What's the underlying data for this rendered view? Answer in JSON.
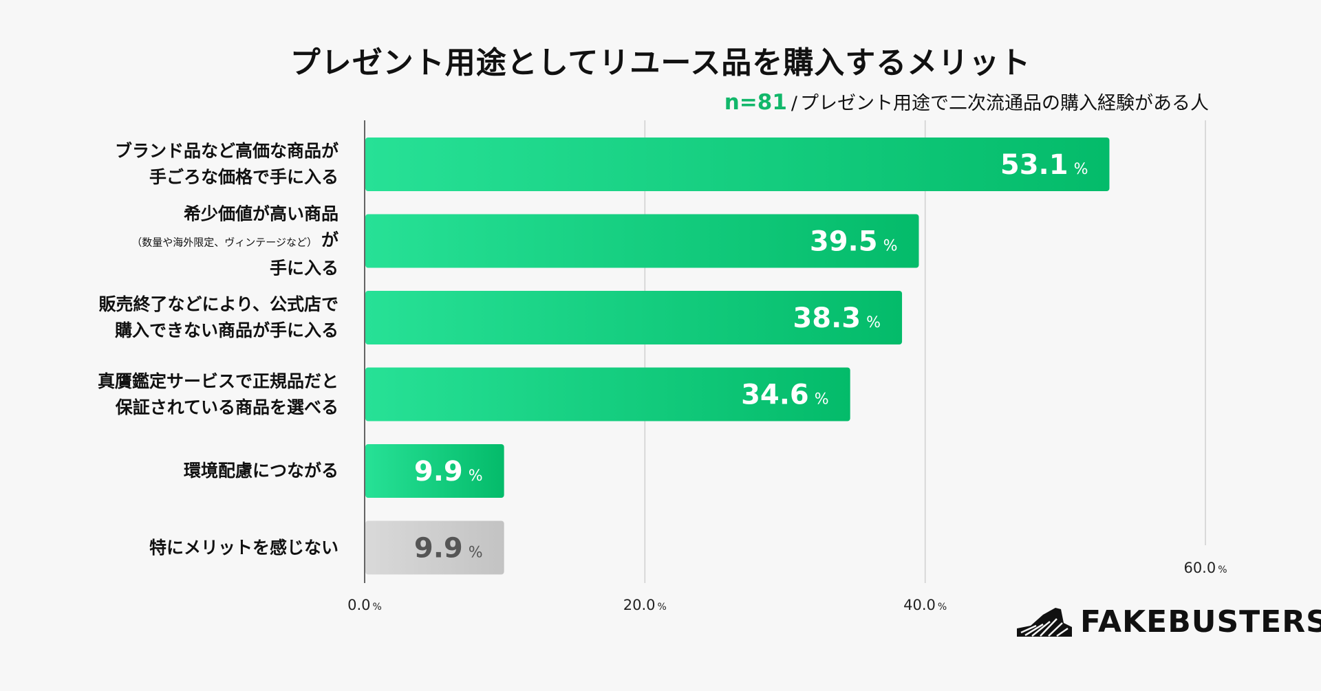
{
  "chart_data": {
    "type": "bar",
    "orientation": "horizontal",
    "title": "プレゼント用途としてリユース品を購入するメリット",
    "sample": {
      "n_label": "n=81",
      "description": "プレゼント用途で二次流通品の購入経験がある人"
    },
    "categories": [
      {
        "lines": [
          "ブランド品など高価な商品が",
          "手ごろな価格で手に入る"
        ],
        "note": ""
      },
      {
        "lines": [
          "希少価値が高い商品",
          "が",
          "手に入る"
        ],
        "note": "（数量や海外限定、ヴィンテージなど）"
      },
      {
        "lines": [
          "販売終了などにより、公式店で",
          "購入できない商品が手に入る"
        ],
        "note": ""
      },
      {
        "lines": [
          "真贋鑑定サービスで正規品だと",
          "保証されている商品を選べる"
        ],
        "note": ""
      },
      {
        "lines": [
          "環境配慮につながる"
        ],
        "note": ""
      },
      {
        "lines": [
          "特にメリットを感じない"
        ],
        "note": ""
      }
    ],
    "values": [
      53.1,
      39.5,
      38.3,
      34.6,
      9.9,
      9.9
    ],
    "value_labels": [
      "53.1",
      "39.5",
      "38.3",
      "34.6",
      "9.9",
      "9.9"
    ],
    "value_suffix": "%",
    "bar_styles": [
      "green",
      "green",
      "green",
      "green",
      "green",
      "gray"
    ],
    "xlim": [
      0,
      60
    ],
    "ticks": [
      {
        "value": 0,
        "label": "0.0",
        "suffix": "%"
      },
      {
        "value": 20,
        "label": "20.0",
        "suffix": "%"
      },
      {
        "value": 40,
        "label": "40.0",
        "suffix": "%"
      },
      {
        "value": 60,
        "label": "60.0",
        "suffix": "%"
      }
    ],
    "grid": true
  },
  "colors": {
    "green_start": "#27e196",
    "green_end": "#04bb6a",
    "gray_start": "#d9d9d9",
    "gray_end": "#c3c3c3",
    "accent": "#12b76a",
    "grid": "#cfcfcf",
    "axis": "#333333"
  },
  "brand": {
    "name": "FAKEBUSTERS",
    "logo_icon": "sneaker-logo-icon"
  }
}
